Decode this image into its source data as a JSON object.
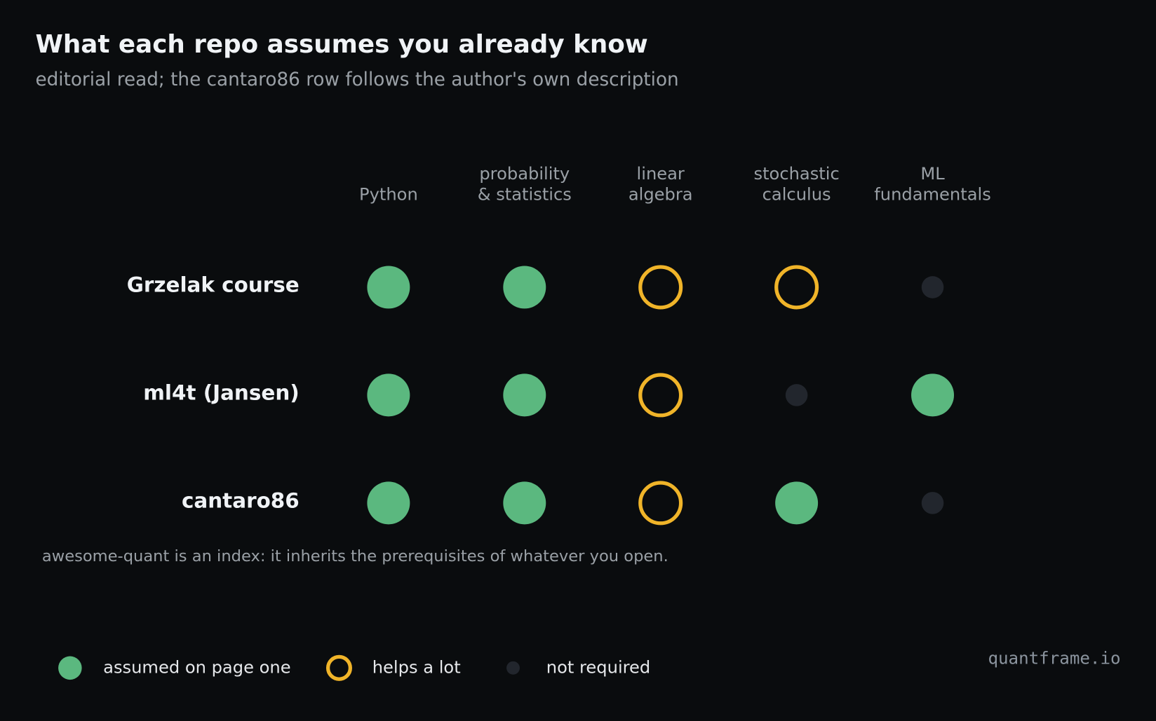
{
  "chart_data": {
    "type": "dot-matrix",
    "title": "What each repo assumes you already know",
    "subtitle": "editorial read; the cantaro86 row follows the author's own description",
    "columns": [
      [
        "Python"
      ],
      [
        "probability",
        "& statistics"
      ],
      [
        "linear",
        "algebra"
      ],
      [
        "stochastic",
        "calculus"
      ],
      [
        "ML",
        "fundamentals"
      ]
    ],
    "rows": [
      {
        "name": "Grzelak course",
        "levels": [
          "assumed",
          "assumed",
          "helps",
          "helps",
          "none"
        ]
      },
      {
        "name": "ml4t (Jansen)",
        "levels": [
          "assumed",
          "assumed",
          "helps",
          "none",
          "assumed"
        ]
      },
      {
        "name": "cantaro86",
        "levels": [
          "assumed",
          "assumed",
          "helps",
          "assumed",
          "none"
        ]
      }
    ],
    "legend": [
      {
        "level": "assumed",
        "label": "assumed on page one",
        "color": "#5bb87f"
      },
      {
        "level": "helps",
        "label": "helps a lot",
        "color": "#f0b429"
      },
      {
        "level": "none",
        "label": "not required",
        "color": "#22262d"
      }
    ],
    "note": "awesome-quant is an index: it inherits the prerequisites of whatever you open.",
    "source": "quantframe.io"
  }
}
